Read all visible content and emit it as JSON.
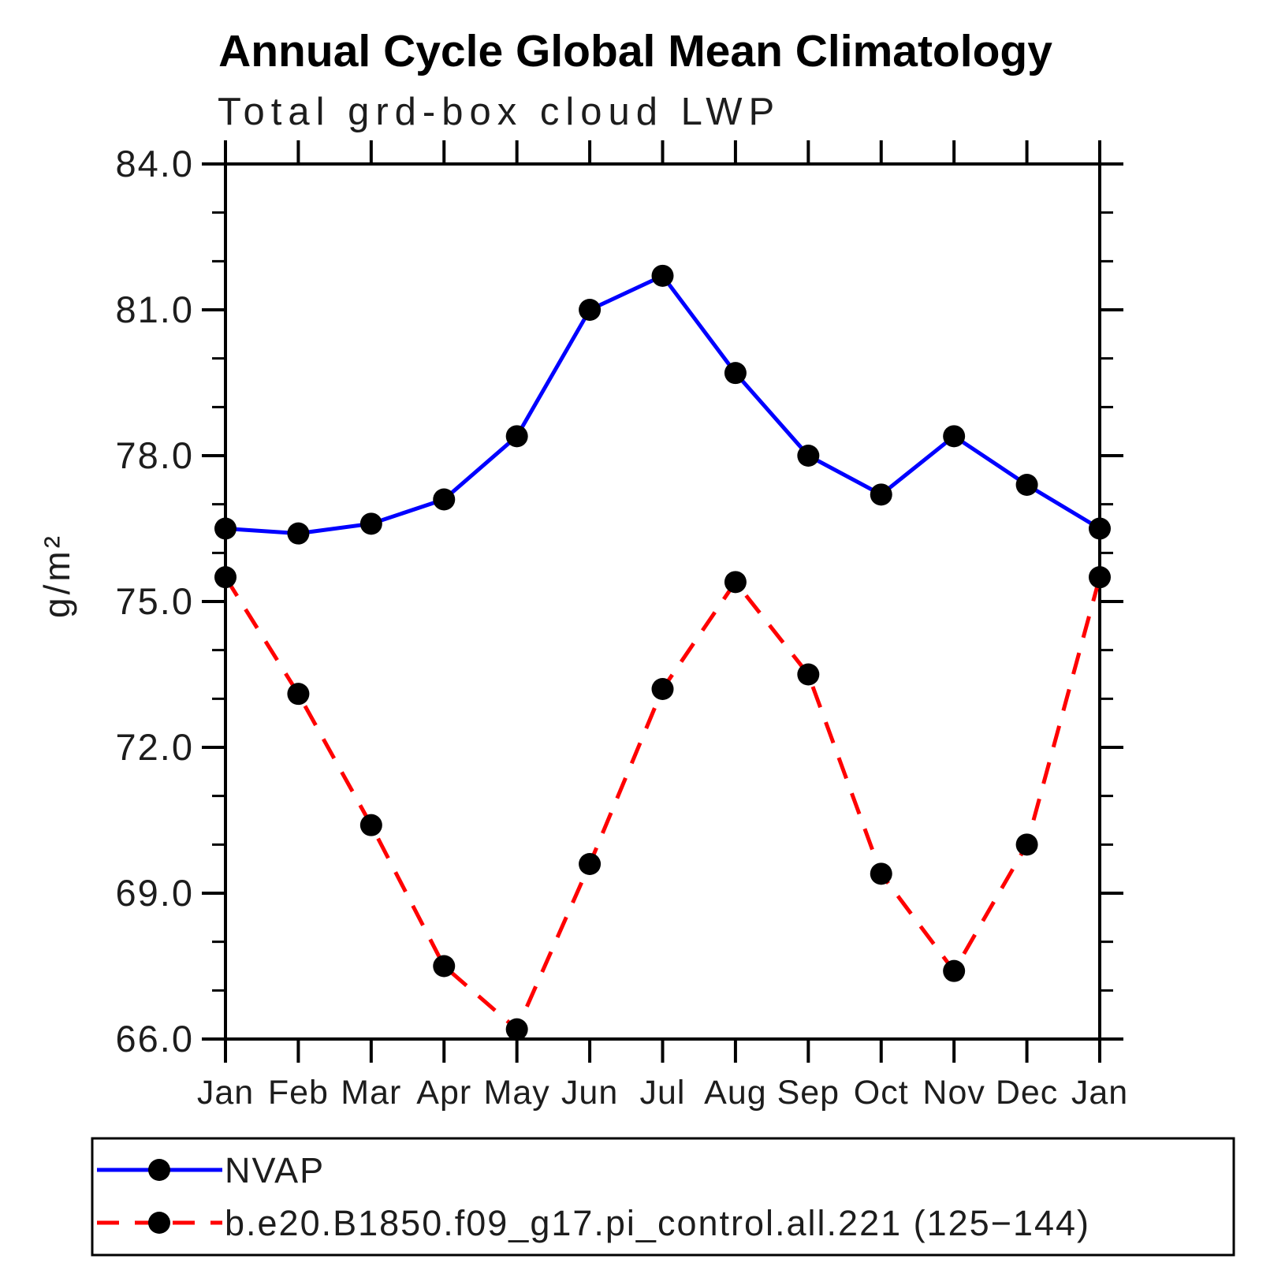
{
  "chart_data": {
    "type": "line",
    "title": "Annual Cycle Global Mean Climatology",
    "subtitle": "Total grd-box cloud LWP",
    "ylabel": "g/m²",
    "xlabel": "",
    "categories": [
      "Jan",
      "Feb",
      "Mar",
      "Apr",
      "May",
      "Jun",
      "Jul",
      "Aug",
      "Sep",
      "Oct",
      "Nov",
      "Dec",
      "Jan"
    ],
    "ylim": [
      66.0,
      84.0
    ],
    "ytick_major_interval": 3.0,
    "ytick_minor_interval": 1.0,
    "ytick_labels": [
      "84.0",
      "81.0",
      "78.0",
      "75.0",
      "72.0",
      "69.0",
      "66.0"
    ],
    "grid": false,
    "legend_position": "bottom",
    "series": [
      {
        "name": "NVAP",
        "color": "#0000ff",
        "line_style": "solid",
        "marker": "circle",
        "marker_color": "#000000",
        "values": [
          76.5,
          76.4,
          76.6,
          77.1,
          78.4,
          81.0,
          81.7,
          79.7,
          78.0,
          77.2,
          78.4,
          77.4,
          76.5
        ]
      },
      {
        "name": "b.e20.B1850.f09_g17.pi_control.all.221 (125−144)",
        "color": "#ff0000",
        "line_style": "dashed",
        "marker": "circle",
        "marker_color": "#000000",
        "values": [
          75.5,
          73.1,
          70.4,
          67.5,
          66.2,
          69.6,
          73.2,
          75.4,
          73.5,
          69.4,
          67.4,
          70.0,
          75.5
        ]
      }
    ]
  }
}
